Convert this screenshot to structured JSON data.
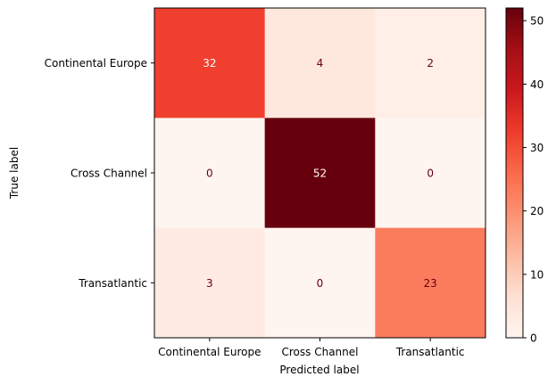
{
  "chart_data": {
    "type": "heatmap",
    "title": "",
    "xlabel": "Predicted label",
    "ylabel": "True label",
    "x_categories": [
      "Continental Europe",
      "Cross Channel",
      "Transatlantic"
    ],
    "y_categories": [
      "Continental Europe",
      "Cross Channel",
      "Transatlantic"
    ],
    "matrix": [
      [
        32,
        4,
        2
      ],
      [
        0,
        52,
        0
      ],
      [
        3,
        0,
        23
      ]
    ],
    "colormap": "Reds",
    "colorbar": {
      "min": 0,
      "max": 52,
      "ticks": [
        0,
        10,
        20,
        30,
        40,
        50
      ]
    },
    "text_colors": {
      "light": "#ffffff",
      "dark": "#67000d"
    }
  }
}
